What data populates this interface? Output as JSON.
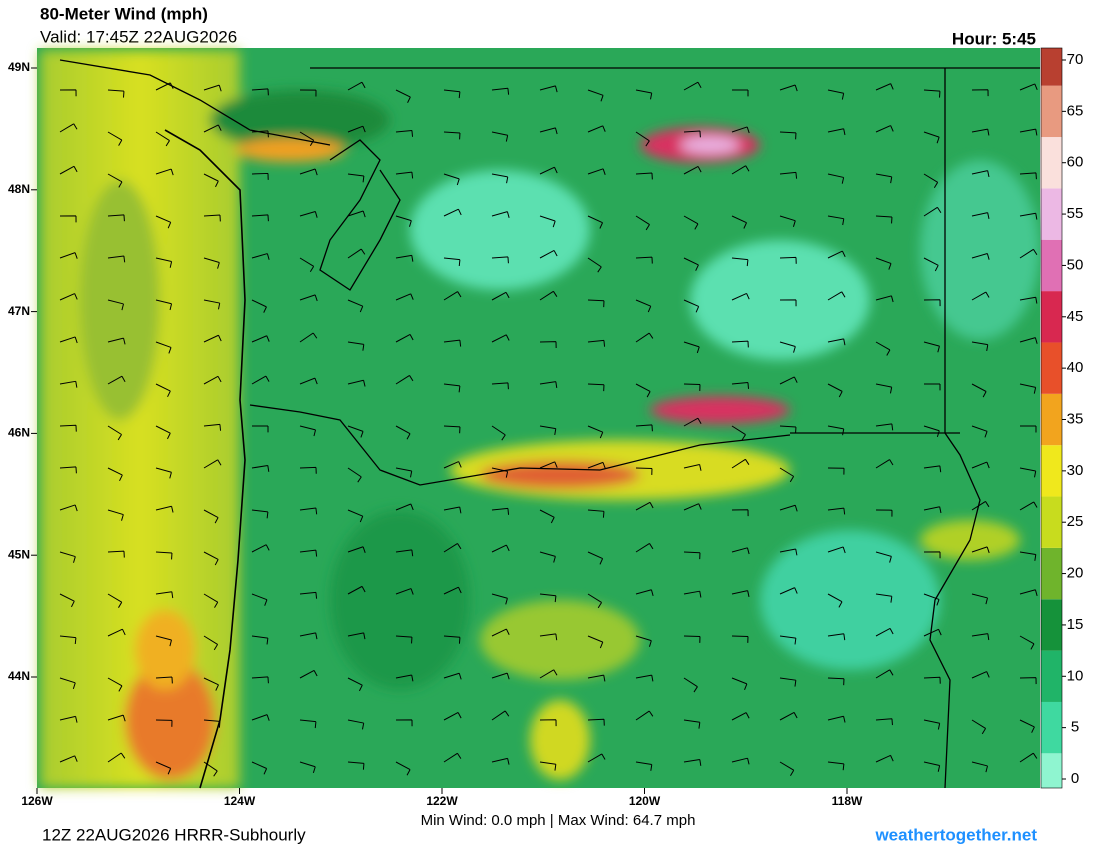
{
  "header": {
    "title": "80-Meter Wind (mph)",
    "valid": "Valid: 17:45Z 22AUG2026",
    "hour": "Hour: 5:45"
  },
  "map": {
    "lat_labels": [
      "49N",
      "48N",
      "47N",
      "46N",
      "45N",
      "44N"
    ],
    "lon_labels": [
      "126W",
      "124W",
      "122W",
      "120W",
      "118W"
    ]
  },
  "colorbar": {
    "ticks": [
      0,
      5,
      10,
      15,
      20,
      25,
      30,
      35,
      40,
      45,
      50,
      55,
      60,
      65,
      70
    ],
    "colors": [
      "#8ff5d0",
      "#3fd9a0",
      "#20b468",
      "#15923a",
      "#6fb42c",
      "#c8dc1e",
      "#f0e81c",
      "#f2a41e",
      "#e8502a",
      "#d82850",
      "#e070b4",
      "#ecb8e4",
      "#fae0dc",
      "#e89a80",
      "#b84030"
    ]
  },
  "footer": {
    "run": "12Z 22AUG2026 HRRR-Subhourly",
    "stats": "Min Wind:   0.0 mph | Max Wind: 64.7 mph",
    "credit": "weathertogether.net"
  }
}
